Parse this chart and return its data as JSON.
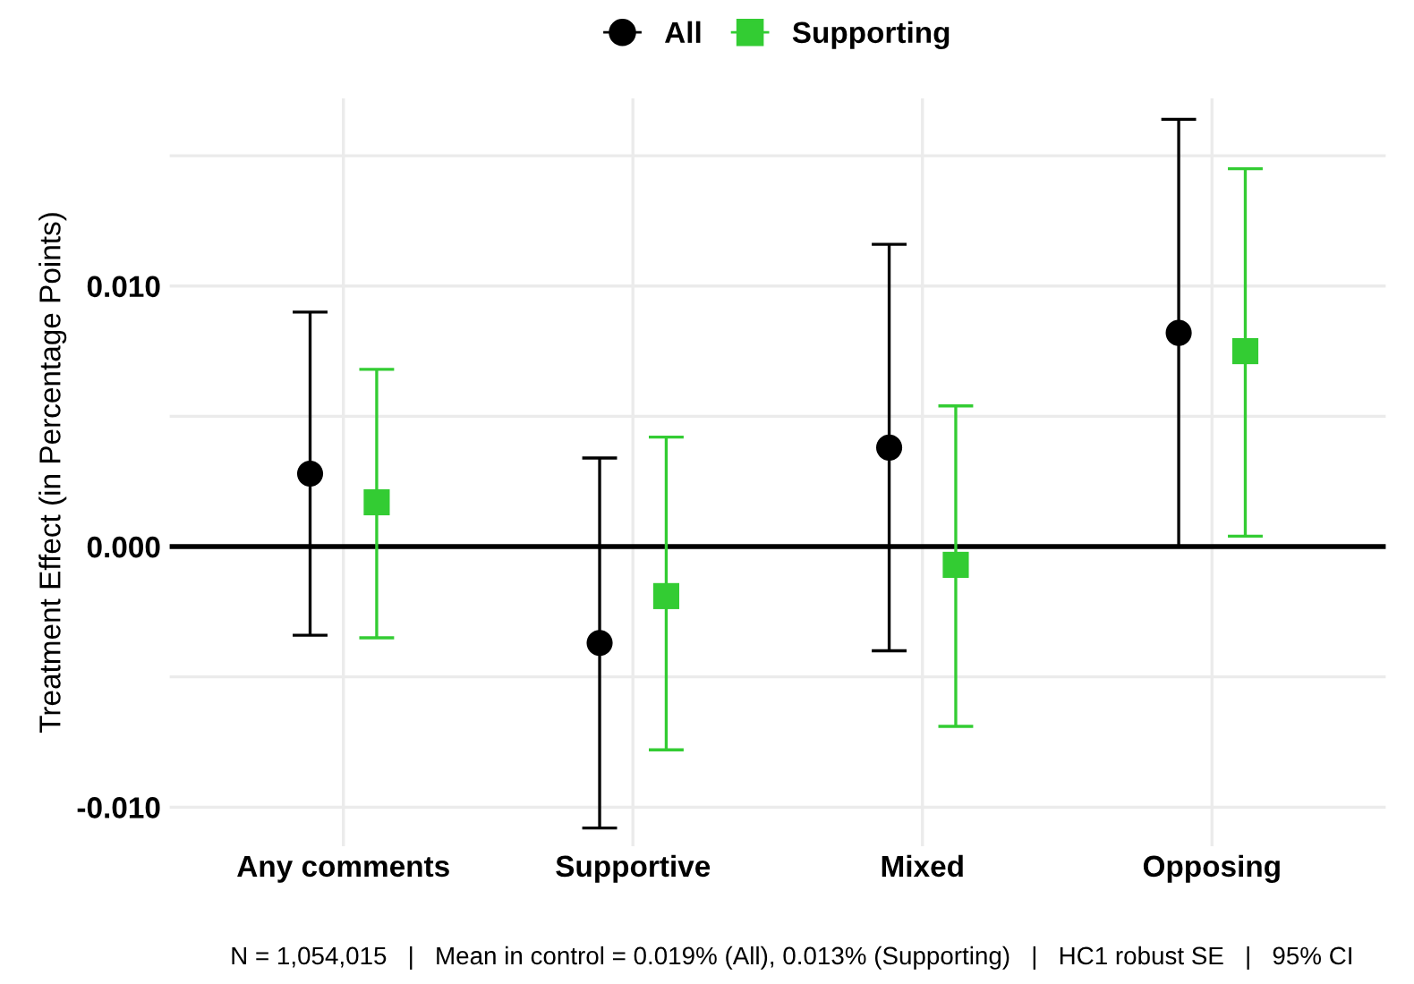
{
  "chart_data": {
    "type": "scatter",
    "ylabel": "Treatment Effect (in Percentage Points)",
    "categories": [
      "Any comments",
      "Supportive",
      "Mixed",
      "Opposing"
    ],
    "series": [
      {
        "name": "All",
        "color": "#000000",
        "marker": "circle",
        "values": [
          0.0028,
          -0.0037,
          0.0038,
          0.0082
        ],
        "errors": [
          [
            -0.0034,
            0.009
          ],
          [
            -0.0108,
            0.0034
          ],
          [
            -0.004,
            0.0116
          ],
          [
            0.0,
            0.0164
          ]
        ]
      },
      {
        "name": "Supporting",
        "color": "#33cc33",
        "marker": "square",
        "values": [
          0.0017,
          -0.0019,
          -0.0007,
          0.0075
        ],
        "errors": [
          [
            -0.0035,
            0.0068
          ],
          [
            -0.0078,
            0.0042
          ],
          [
            -0.0069,
            0.0054
          ],
          [
            0.0004,
            0.0145
          ]
        ]
      }
    ],
    "ylim": [
      -0.0115,
      0.0172
    ],
    "yticks": [
      {
        "value": -0.01,
        "label": "-0.010"
      },
      {
        "value": -0.005,
        "label": null
      },
      {
        "value": 0,
        "label": "0.000"
      },
      {
        "value": 0.005,
        "label": null
      },
      {
        "value": 0.01,
        "label": "0.010"
      },
      {
        "value": 0.015,
        "label": null
      }
    ],
    "ref_lines": [
      {
        "axis": "y",
        "value": 0,
        "color": "#000000"
      }
    ],
    "grid": true,
    "legend": "top",
    "annotations": [
      "N = 1,054,015   |   Mean in control = 0.019% (All), 0.013% (Supporting)   |   HC1 robust SE   |   95% CI"
    ]
  }
}
